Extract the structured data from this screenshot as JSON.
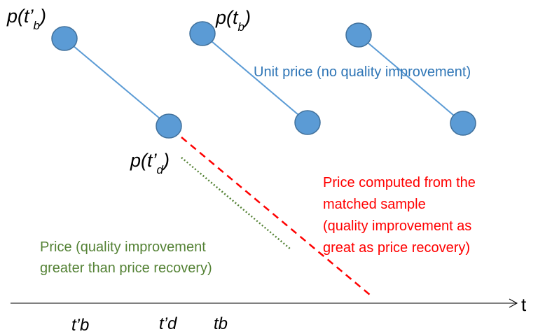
{
  "point_labels": [
    {
      "text": "p(t’",
      "sub": "b",
      "close": ")"
    },
    {
      "text": "p(t",
      "sub": "b",
      "close": ")"
    },
    {
      "text": "p(t’",
      "sub": "d",
      "close": ")"
    }
  ],
  "unit_price_label": "Unit price (no quality improvement)",
  "matched_sample_label": [
    "Price computed from the",
    "matched sample",
    "(quality improvement as",
    "great as price recovery)"
  ],
  "quality_label": [
    "Price (quality improvement",
    "greater than price recovery)"
  ],
  "axis": {
    "label": "t",
    "ticks": [
      "t’b",
      "t’d",
      "tb"
    ]
  }
}
